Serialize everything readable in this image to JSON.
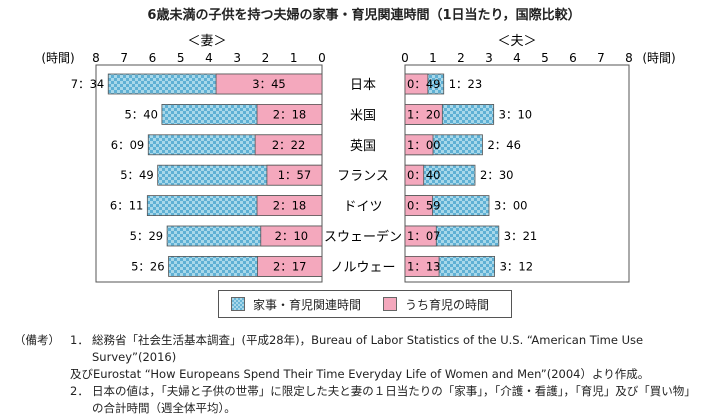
{
  "title": "6歳未満の子供を持つ夫婦の家事・育児関連時間（1日当たり，国際比較）",
  "chart_data": {
    "type": "bar",
    "categories": [
      "日本",
      "米国",
      "英国",
      "フランス",
      "ドイツ",
      "スウェーデン",
      "ノルウェー"
    ],
    "wife_label": "＜妻＞",
    "husband_label": "＜夫＞",
    "unit_label": "(時間)",
    "ticks_left": [
      "8",
      "7",
      "6",
      "5",
      "4",
      "3",
      "2",
      "1",
      "0"
    ],
    "ticks_right": [
      "0",
      "1",
      "2",
      "3",
      "4",
      "5",
      "6",
      "7",
      "8"
    ],
    "xlim": [
      0,
      8
    ],
    "series": [
      {
        "name": "家事・育児関連時間",
        "wife_values": [
          7.567,
          5.667,
          6.15,
          5.817,
          6.183,
          5.483,
          5.433
        ],
        "wife_labels": [
          "7：34",
          "5：40",
          "6：09",
          "5：49",
          "6：11",
          "5：29",
          "5：26"
        ],
        "husband_values": [
          1.383,
          3.167,
          2.767,
          2.5,
          3.0,
          3.35,
          3.2
        ],
        "husband_labels": [
          "1：23",
          "3：10",
          "2：46",
          "2：30",
          "3：00",
          "3：21",
          "3：12"
        ]
      },
      {
        "name": "うち育児の時間",
        "wife_values": [
          3.75,
          2.3,
          2.367,
          1.95,
          2.3,
          2.167,
          2.283
        ],
        "wife_labels": [
          "3：45",
          "2：18",
          "2：22",
          "1：57",
          "2：18",
          "2：10",
          "2：17"
        ],
        "husband_values": [
          0.817,
          1.333,
          1.0,
          0.667,
          0.983,
          1.117,
          1.217
        ],
        "husband_labels": [
          "0：49",
          "1：20",
          "1：00",
          "0：40",
          "0：59",
          "1：07",
          "1：13"
        ]
      }
    ]
  },
  "legend": {
    "item1": "家事・育児関連時間",
    "item2": "うち育児の時間"
  },
  "notes": {
    "head": "（備考）",
    "n1": "1．",
    "n1_text_a": "総務省「社会生活基本調査」(平成28年)，Bureau of Labor Statistics of the U.S. “American Time Use Survey”(2016)",
    "n1_text_b": "及びEurostat “How Europeans Spend Their Time Everyday Life of Women and Men”(2004）より作成。",
    "n2": "2．",
    "n2_text_a": "日本の値は，「夫婦と子供の世帯」に限定した夫と妻の１日当たりの「家事」，「介護・看護」，「育児」及び「買い物」",
    "n2_text_b": "の合計時間（週全体平均）。"
  }
}
